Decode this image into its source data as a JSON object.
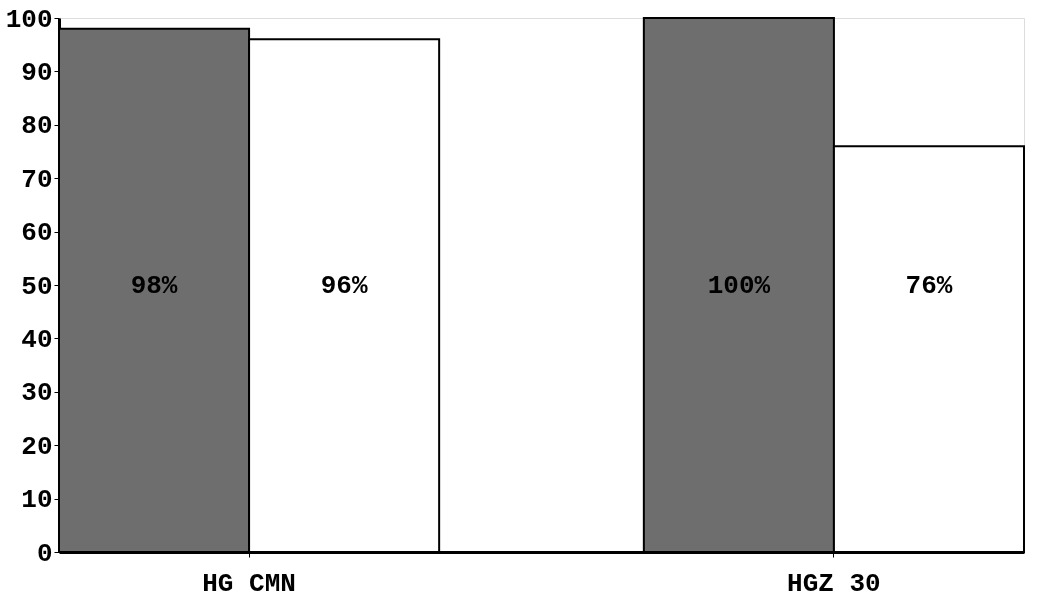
{
  "chart_data": {
    "type": "bar",
    "categories": [
      "HG CMN",
      "HGZ 30"
    ],
    "series": [
      {
        "color": "#6e6e6e",
        "values": [
          98,
          100
        ],
        "value_labels": [
          "98%",
          "100%"
        ]
      },
      {
        "color": "#ffffff",
        "values": [
          96,
          76
        ],
        "value_labels": [
          "96%",
          "76%"
        ]
      }
    ],
    "ylim": [
      0,
      100
    ],
    "yticks": [
      0,
      10,
      20,
      30,
      40,
      50,
      60,
      70,
      80,
      90,
      100
    ],
    "grid": false
  }
}
